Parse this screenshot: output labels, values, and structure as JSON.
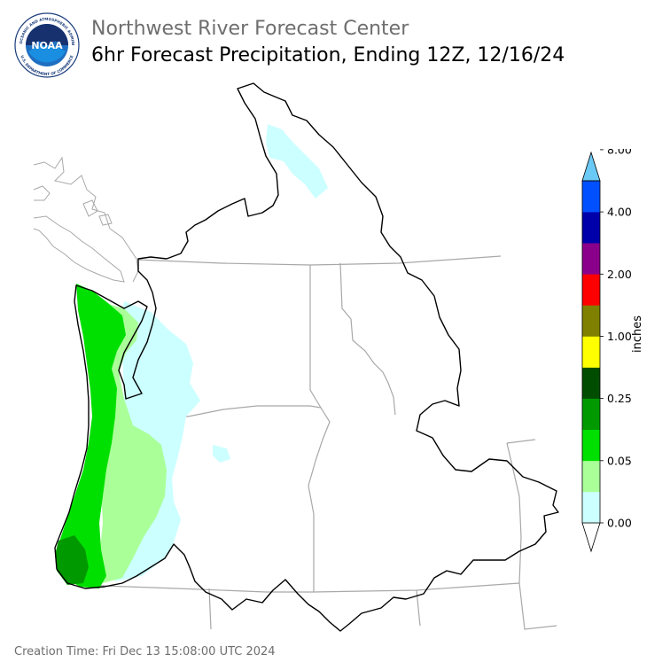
{
  "header": {
    "title": "Northwest River Forecast Center",
    "subtitle": "6hr Forecast Precipitation, Ending 12Z, 12/16/24"
  },
  "logo": {
    "text": "NOAA",
    "ring_text_top": "NATIONAL OCEANIC AND ATMOSPHERIC ADMINISTRATION",
    "ring_text_bottom": "U.S. DEPARTMENT OF COMMERCE"
  },
  "legend": {
    "unit_label": "inches",
    "tick_labels": [
      "0.00",
      "0.05",
      "0.25",
      "1.00",
      "2.00",
      "4.00",
      "8.00"
    ],
    "colors": [
      "#ffffff",
      "#ccffff",
      "#aaff99",
      "#00e000",
      "#009900",
      "#004d00",
      "#ffff00",
      "#808000",
      "#ff0000",
      "#8b008b",
      "#0000aa",
      "#0050ff",
      "#6bc9f5"
    ]
  },
  "footer": {
    "creation_time": "Creation Time: Fri Dec 13 15:08:00 UTC 2024"
  }
}
